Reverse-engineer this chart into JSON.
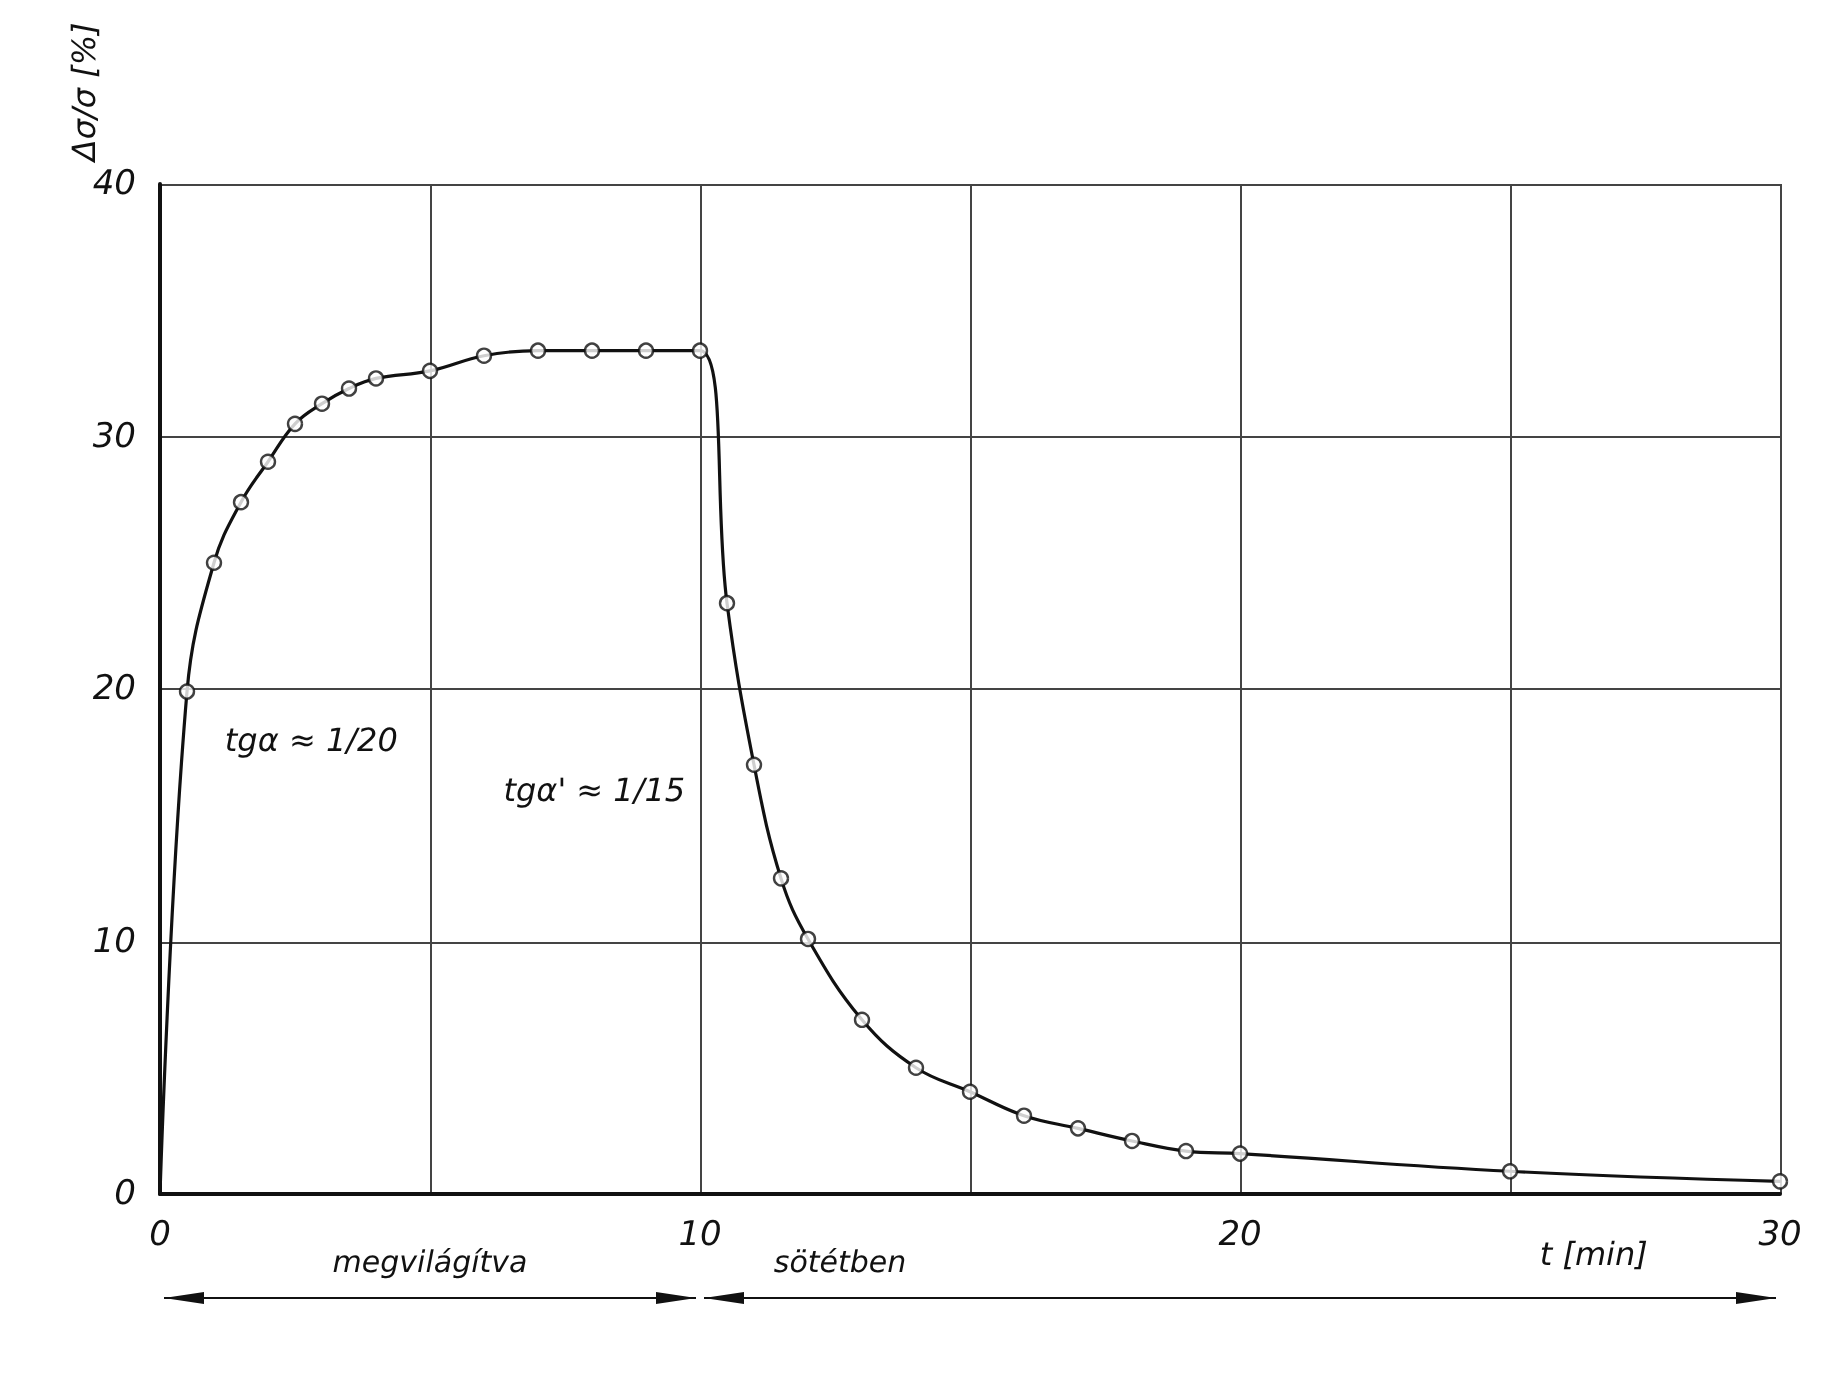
{
  "chart_data": {
    "type": "line",
    "xlabel": "t [min]",
    "ylabel": "Δσ/σ [%]",
    "xlim": [
      0,
      30
    ],
    "ylim": [
      0,
      40
    ],
    "xticks": [
      0,
      {
        "value": 5,
        "label": null
      },
      10,
      {
        "value": 15,
        "label": null
      },
      20,
      {
        "value": 25,
        "label": null
      },
      30
    ],
    "yticks": [
      0,
      10,
      20,
      30,
      40
    ],
    "grid": true,
    "series": [
      {
        "marker": "none",
        "color": "#111111",
        "x": [
          0,
          0.5,
          1,
          1.5,
          2,
          2.5,
          3,
          3.5,
          4,
          5,
          6,
          7,
          8,
          9,
          10,
          10.5,
          11,
          11.5,
          12,
          13,
          14,
          15,
          16,
          17,
          18,
          19,
          20,
          25,
          30
        ],
        "values": [
          0,
          19.9,
          25.0,
          27.4,
          29.0,
          30.5,
          31.3,
          31.9,
          32.3,
          32.6,
          33.2,
          33.4,
          33.4,
          33.4,
          33.4,
          23.4,
          17.0,
          12.5,
          10.1,
          6.9,
          5.0,
          4.05,
          3.1,
          2.6,
          2.1,
          1.7,
          1.6,
          0.9,
          0.5
        ]
      },
      {
        "type": "scatter",
        "marker": "circle",
        "color": "#111111",
        "x": [
          0.5,
          1,
          1.5,
          2,
          2.5,
          3,
          3.5,
          4,
          5,
          6,
          7,
          8,
          9,
          10,
          10.5,
          11,
          11.5,
          12,
          13,
          14,
          15,
          16,
          17,
          18,
          19,
          20,
          25,
          30
        ],
        "values": [
          19.9,
          25.0,
          27.4,
          29.0,
          30.5,
          31.3,
          31.9,
          32.3,
          32.6,
          33.2,
          33.4,
          33.4,
          33.4,
          33.4,
          23.4,
          17.0,
          12.5,
          10.1,
          6.9,
          5.0,
          4.05,
          3.1,
          2.6,
          2.1,
          1.7,
          1.6,
          0.9,
          0.5
        ]
      }
    ],
    "annotations": [
      "tgα ≈ 1/20",
      "tgα' ≈ 1/15",
      "megvilágítva",
      "sötétben"
    ]
  }
}
